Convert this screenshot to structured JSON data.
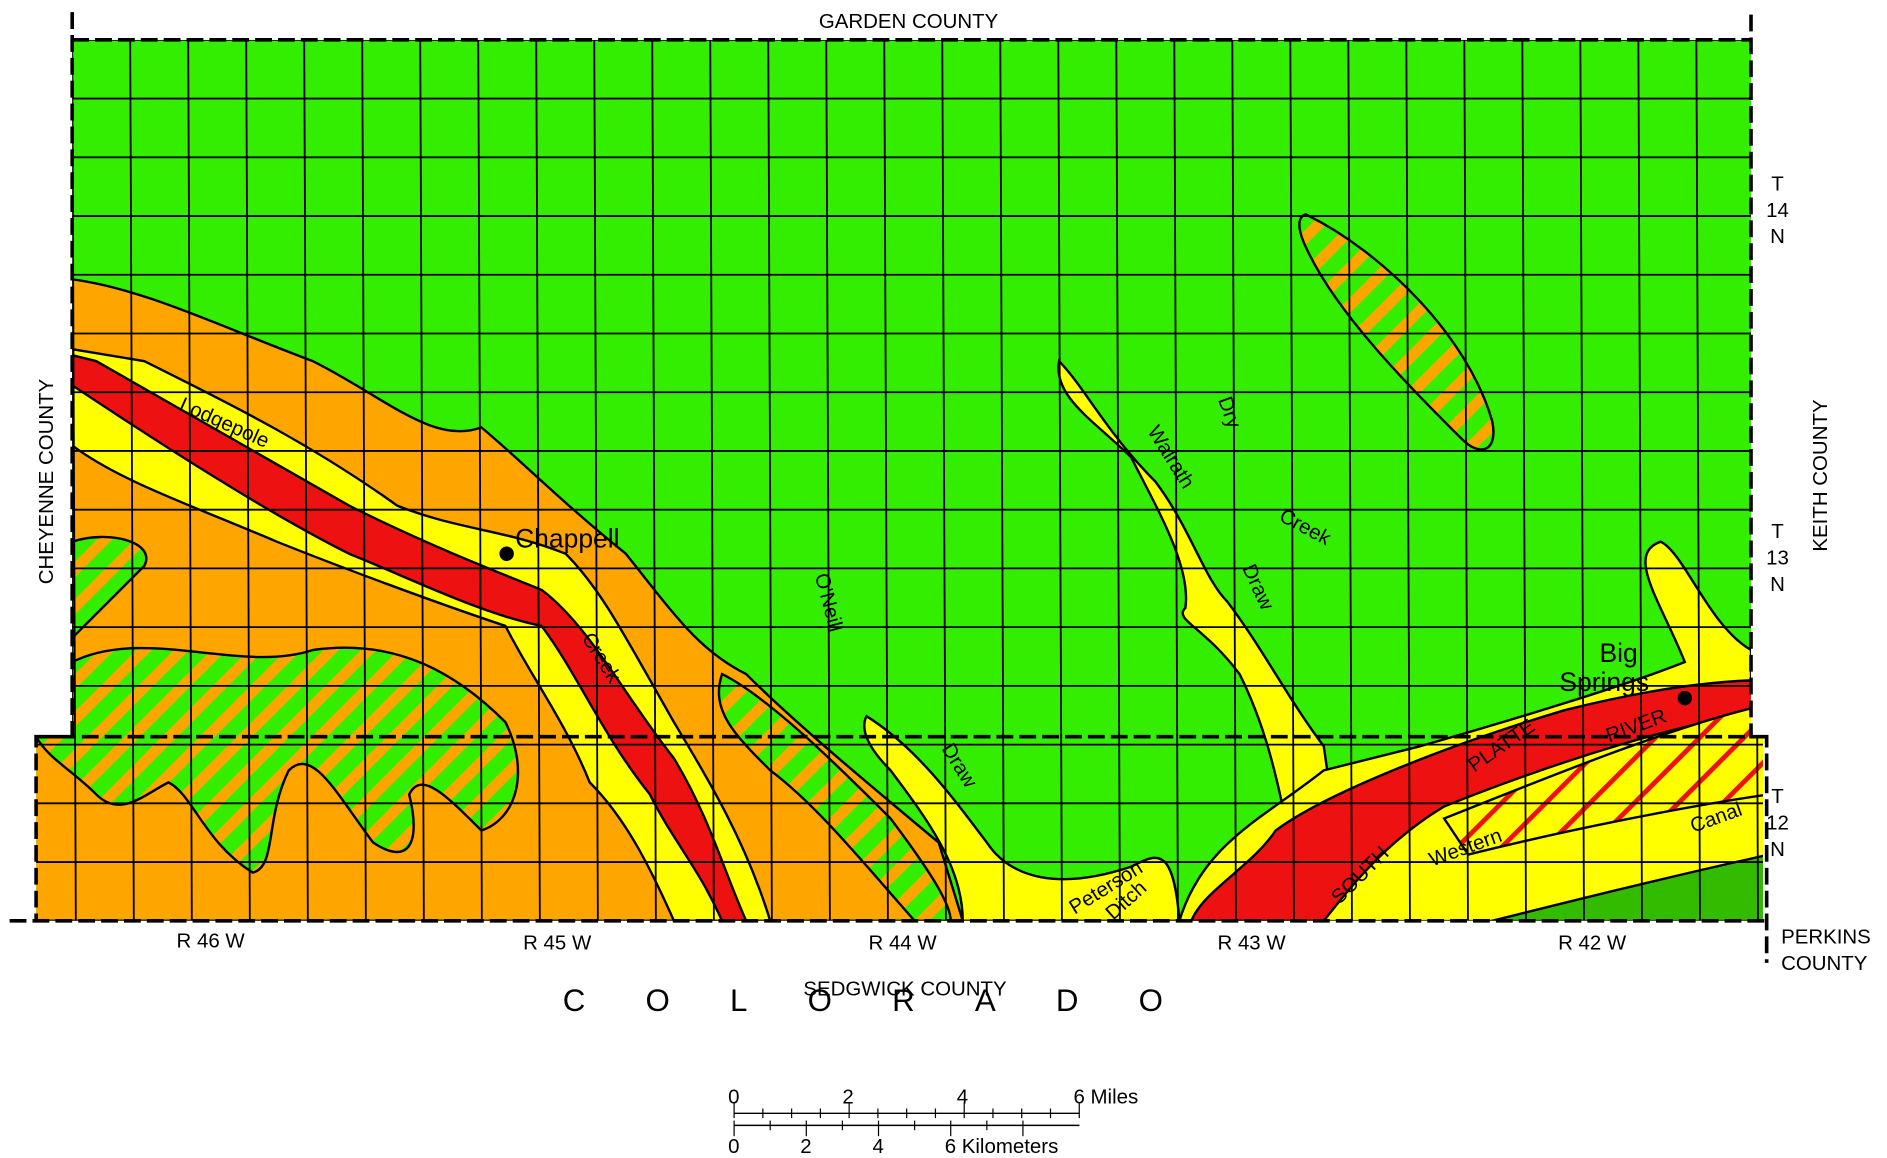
{
  "counties": {
    "north": "GARDEN COUNTY",
    "west": "CHEYENNE COUNTY",
    "east": "KEITH COUNTY",
    "south": "SEDGWICK COUNTY",
    "southeast": [
      "PERKINS",
      "COUNTY"
    ]
  },
  "state": "COLORADO",
  "townships": [
    [
      "T",
      "14",
      "N"
    ],
    [
      "T",
      "13",
      "N"
    ],
    [
      "T",
      "12",
      "N"
    ]
  ],
  "ranges": [
    "R 46 W",
    "R 45 W",
    "R 44 W",
    "R 43 W",
    "R 42 W"
  ],
  "places": {
    "chappell": "Chappell",
    "big_springs": [
      "Big",
      "Springs"
    ]
  },
  "features": [
    "Lodgepole",
    "Creek",
    "O'Neill",
    "Draw",
    "Walrath",
    "Draw",
    "Dry",
    "Creek",
    "Peterson",
    "Ditch",
    "SOUTH",
    "PLATTE",
    "RIVER",
    "Western",
    "Canal"
  ],
  "scale": {
    "miles": [
      "0",
      "2",
      "4",
      "6 Miles"
    ],
    "kilometers": [
      "0",
      "2",
      "4",
      "6 Kilometers"
    ]
  }
}
